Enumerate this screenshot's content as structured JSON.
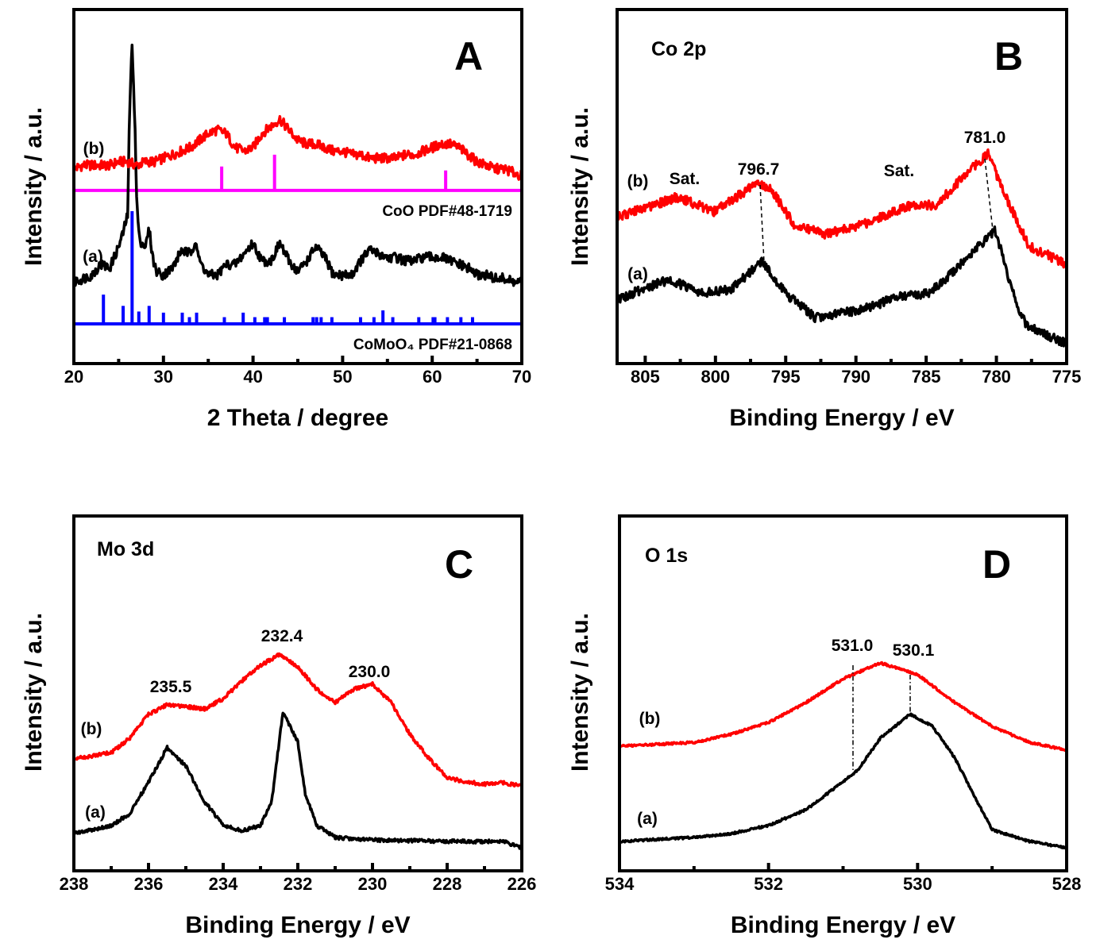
{
  "chart_data": [
    {
      "panel": "A",
      "type": "line",
      "title": "",
      "xlabel": "2 Theta / degree",
      "ylabel": "Intensity / a.u.",
      "xlim": [
        20,
        70
      ],
      "xticks": [
        20,
        30,
        40,
        50,
        60,
        70
      ],
      "xminor": 5,
      "ylim": [
        0,
        100
      ],
      "noise": 1.4,
      "series": [
        {
          "name": "(b)",
          "color": "#ff0000",
          "x": [
            20,
            21,
            22,
            23,
            24,
            25,
            26,
            27,
            28,
            29,
            30,
            31,
            32,
            33,
            34,
            35,
            36,
            37,
            38,
            39,
            40,
            41,
            42,
            43,
            44,
            45,
            46,
            47,
            48,
            49,
            50,
            51,
            52,
            53,
            54,
            55,
            56,
            57,
            58,
            59,
            60,
            61,
            62,
            63,
            64,
            65,
            66,
            67,
            68,
            69,
            70
          ],
          "y": [
            55,
            56,
            56,
            56,
            56,
            57,
            57,
            56,
            57,
            57,
            58,
            59,
            60,
            61,
            63,
            65,
            66,
            65,
            61,
            60,
            61,
            65,
            67,
            69,
            66,
            63,
            62,
            62,
            61,
            60,
            60,
            59,
            59,
            58,
            58,
            58,
            58,
            59,
            59,
            60,
            61,
            62,
            62,
            61,
            59,
            57,
            56,
            55,
            55,
            54,
            53
          ]
        },
        {
          "name": "(a)",
          "color": "#000000",
          "x": [
            20,
            21,
            22,
            23,
            24,
            25,
            25.5,
            26,
            26.2,
            26.5,
            26.8,
            27,
            27.3,
            28,
            28.4,
            28.8,
            29.2,
            30,
            31,
            32,
            33,
            33.6,
            34,
            35,
            36,
            37,
            38,
            39,
            40,
            41,
            42,
            43,
            44,
            45,
            46,
            47,
            48,
            49,
            50,
            51,
            52,
            53,
            54,
            55,
            56,
            57,
            58,
            59,
            60,
            61,
            62,
            63,
            64,
            65,
            66,
            67,
            68,
            69,
            70
          ],
          "y": [
            23,
            24,
            25,
            28,
            27,
            33,
            37,
            42,
            69,
            91,
            69,
            47,
            35,
            33,
            38,
            30,
            26,
            25,
            27,
            32,
            31,
            35,
            29,
            25,
            25,
            28,
            28,
            31,
            34,
            29,
            29,
            34,
            29,
            26,
            29,
            33,
            30,
            25,
            25,
            25,
            29,
            32,
            31,
            30,
            30,
            29,
            29,
            30,
            30,
            30,
            29,
            28,
            27,
            25,
            25,
            24,
            24,
            23,
            23
          ]
        }
      ],
      "reference_patterns": [
        {
          "label": "CoO PDF#48-1719",
          "color": "#ff00ff",
          "peaks": [
            36.5,
            42.4,
            61.5
          ],
          "relative_intensity": [
            67,
            100,
            56
          ]
        },
        {
          "label": "CoMoO₄ PDF#21-0868",
          "color": "#0000ff",
          "peaks": [
            23.3,
            25.5,
            26.5,
            27.25,
            28.4,
            30.0,
            32.1,
            32.9,
            33.7,
            36.8,
            38.9,
            40.2,
            41.3,
            41.6,
            43.5,
            46.7,
            47.1,
            47.6,
            48.8,
            52.0,
            53.5,
            54.5,
            55.6,
            58.5,
            60.1,
            60.3,
            61.7,
            63.2,
            64.5
          ],
          "relative_intensity": [
            26,
            16,
            100,
            11,
            16,
            10,
            10,
            6,
            10,
            6,
            10,
            6,
            6,
            6,
            6,
            6,
            6,
            6,
            6,
            6,
            6,
            12,
            6,
            6,
            6,
            6,
            6,
            6,
            6
          ]
        }
      ],
      "annotations": []
    },
    {
      "panel": "B",
      "type": "line",
      "title": "Co 2p",
      "xlabel": "Binding Energy / eV",
      "ylabel": "Intensity / a.u.",
      "xlim": [
        807,
        775
      ],
      "xticks": [
        805,
        800,
        795,
        790,
        785,
        780,
        775
      ],
      "xminor": 2.5,
      "ylim": [
        0,
        100
      ],
      "noise": 1.3,
      "series": [
        {
          "name": "(b)",
          "color": "#ff0000",
          "x": [
            807,
            802.7,
            800.1,
            797.1,
            796.1,
            794.4,
            792.2,
            789.5,
            786.3,
            784.3,
            782.0,
            780.6,
            779.2,
            777.7,
            775
          ],
          "y": [
            41.4,
            47.0,
            42.9,
            50.7,
            49.6,
            39.2,
            36.5,
            39.2,
            44.4,
            44.8,
            54.1,
            59.3,
            45.9,
            33.2,
            28.0
          ]
        },
        {
          "name": "(a)",
          "color": "#000000",
          "x": [
            807,
            803.3,
            801.0,
            798.9,
            796.7,
            795.0,
            792.9,
            789.7,
            786.5,
            784.8,
            782.2,
            780.1,
            778.8,
            777.9,
            775
          ],
          "y": [
            18.2,
            23.8,
            19.7,
            20.9,
            28.7,
            19.7,
            13.0,
            15.2,
            19.3,
            19.7,
            29.4,
            37.7,
            19.7,
            10.8,
            5.6
          ]
        }
      ],
      "annotations": [
        {
          "text": "796.7",
          "x": 796.7
        },
        {
          "text": "781.0",
          "x": 781.0
        },
        {
          "text": "Sat.",
          "x": 802.5
        },
        {
          "text": "Sat.",
          "x": 787.0
        }
      ]
    },
    {
      "panel": "C",
      "type": "line",
      "title": "Mo 3d",
      "xlabel": "Binding Energy / eV",
      "ylabel": "Intensity / a.u.",
      "xlim": [
        238,
        226
      ],
      "xticks": [
        238,
        236,
        234,
        232,
        230,
        228,
        226
      ],
      "xminor": 1,
      "ylim": [
        0,
        100
      ],
      "noise": 0.5,
      "series": [
        {
          "name": "(b)",
          "color": "#ff0000",
          "x": [
            238,
            237.5,
            237,
            236.5,
            236,
            235.5,
            235,
            234.5,
            234,
            233.5,
            233,
            232.5,
            232,
            231.5,
            231,
            230.5,
            230,
            229.5,
            229,
            228.5,
            228,
            227.5,
            227,
            226.5,
            226
          ],
          "y": [
            31.8,
            32.4,
            33.3,
            37.4,
            44.1,
            46.8,
            46.3,
            45.6,
            48.5,
            53.5,
            57.9,
            60.9,
            57.5,
            51.2,
            47.4,
            51.2,
            52.6,
            47.4,
            38.5,
            31.8,
            26.2,
            25.1,
            24.4,
            24.8,
            23.9
          ]
        },
        {
          "name": "(a)",
          "color": "#000000",
          "x": [
            238,
            237.5,
            237,
            236.5,
            236,
            235.5,
            235,
            234.5,
            234,
            233.5,
            233,
            232.7,
            232.4,
            232,
            231.8,
            231.5,
            231,
            230,
            228,
            226.5,
            226
          ],
          "y": [
            10.5,
            11.6,
            12.8,
            16.1,
            25.1,
            34.7,
            29.5,
            19.5,
            12.8,
            11.2,
            12.8,
            19.5,
            44.7,
            36.2,
            21.7,
            12.8,
            9.4,
            8.7,
            8.3,
            8.3,
            6.5
          ]
        }
      ],
      "annotations": [
        {
          "text": "235.5",
          "x": 235.5
        },
        {
          "text": "232.4",
          "x": 232.4
        },
        {
          "text": "230.0",
          "x": 230.0
        }
      ]
    },
    {
      "panel": "D",
      "type": "line",
      "title": "O 1s",
      "xlabel": "Binding Energy / eV",
      "ylabel": "Intensity / a.u.",
      "xlim": [
        534,
        528
      ],
      "xticks": [
        534,
        532,
        530,
        528
      ],
      "xminor": 1,
      "ylim": [
        0,
        100
      ],
      "noise": 0.3,
      "series": [
        {
          "name": "(b)",
          "color": "#ff0000",
          "x": [
            534,
            533,
            532.5,
            532,
            531.5,
            531,
            530.5,
            530,
            529.5,
            529,
            528.5,
            528
          ],
          "y": [
            35.1,
            36.2,
            38.5,
            41.8,
            47.4,
            54.1,
            58.6,
            55.3,
            47.4,
            40.7,
            36.2,
            34.0
          ]
        },
        {
          "name": "(a)",
          "color": "#000000",
          "x": [
            534,
            533,
            532.5,
            532,
            531.5,
            531,
            530.8,
            530.5,
            530.1,
            529.8,
            529.5,
            529.2,
            529,
            528.5,
            528
          ],
          "y": [
            8.3,
            9.4,
            10.5,
            12.8,
            17.2,
            25.1,
            28.4,
            37.4,
            44.1,
            40.7,
            31.8,
            19.5,
            11.6,
            8.3,
            6.5
          ]
        }
      ],
      "annotations": [
        {
          "text": "531.0",
          "x": 531.0
        },
        {
          "text": "530.1",
          "x": 530.1
        }
      ]
    }
  ]
}
